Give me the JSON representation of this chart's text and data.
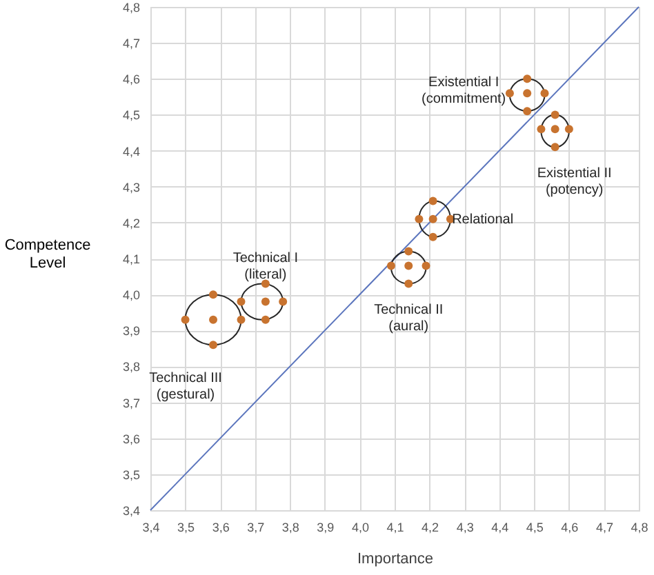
{
  "chart_data": {
    "type": "scatter",
    "xlabel": "Importance",
    "ylabel": "Competence\nLevel",
    "xlim": [
      3.4,
      4.8
    ],
    "ylim": [
      3.4,
      4.8
    ],
    "xticks": [
      {
        "value": 3.4,
        "label": "3,4"
      },
      {
        "value": 3.5,
        "label": "3,5"
      },
      {
        "value": 3.6,
        "label": "3,6"
      },
      {
        "value": 3.7,
        "label": "3,7"
      },
      {
        "value": 3.8,
        "label": "3,8"
      },
      {
        "value": 3.9,
        "label": "3,9"
      },
      {
        "value": 4.0,
        "label": "4,0"
      },
      {
        "value": 4.1,
        "label": "4,1"
      },
      {
        "value": 4.2,
        "label": "4,2"
      },
      {
        "value": 4.3,
        "label": "4,3"
      },
      {
        "value": 4.4,
        "label": "4,4"
      },
      {
        "value": 4.5,
        "label": "4,5"
      },
      {
        "value": 4.6,
        "label": "4,6"
      },
      {
        "value": 4.7,
        "label": "4,7"
      },
      {
        "value": 4.8,
        "label": "4,8"
      }
    ],
    "yticks": [
      {
        "value": 3.4,
        "label": "3,4"
      },
      {
        "value": 3.5,
        "label": "3,5"
      },
      {
        "value": 3.6,
        "label": "3,6"
      },
      {
        "value": 3.7,
        "label": "3,7"
      },
      {
        "value": 3.8,
        "label": "3,8"
      },
      {
        "value": 3.9,
        "label": "3,9"
      },
      {
        "value": 4.0,
        "label": "4,0"
      },
      {
        "value": 4.1,
        "label": "4,1"
      },
      {
        "value": 4.2,
        "label": "4,2"
      },
      {
        "value": 4.3,
        "label": "4,3"
      },
      {
        "value": 4.4,
        "label": "4,4"
      },
      {
        "value": 4.5,
        "label": "4,5"
      },
      {
        "value": 4.6,
        "label": "4,6"
      },
      {
        "value": 4.7,
        "label": "4,7"
      },
      {
        "value": 4.8,
        "label": "4,8"
      }
    ],
    "grid": true,
    "marker": "circle",
    "series": [
      {
        "name": "Existential I\n(commitment)",
        "color": "#c8732f",
        "x": [
          4.48,
          4.43,
          4.53,
          4.48,
          4.48
        ],
        "values": [
          4.56,
          4.56,
          4.56,
          4.51,
          4.6
        ]
      },
      {
        "name": "Existential II\n(potency)",
        "color": "#c8732f",
        "x": [
          4.56,
          4.52,
          4.6,
          4.56,
          4.56
        ],
        "values": [
          4.46,
          4.46,
          4.46,
          4.41,
          4.5
        ]
      },
      {
        "name": "Relational",
        "color": "#c8732f",
        "x": [
          4.21,
          4.17,
          4.26,
          4.21,
          4.21
        ],
        "values": [
          4.21,
          4.21,
          4.21,
          4.16,
          4.26
        ]
      },
      {
        "name": "Technical II\n(aural)",
        "color": "#c8732f",
        "x": [
          4.14,
          4.09,
          4.19,
          4.14,
          4.14
        ],
        "values": [
          4.08,
          4.08,
          4.08,
          4.03,
          4.12
        ]
      },
      {
        "name": "Technical I\n(literal)",
        "color": "#c8732f",
        "x": [
          3.73,
          3.66,
          3.78,
          3.73,
          3.73
        ],
        "values": [
          3.98,
          3.98,
          3.98,
          3.93,
          4.03
        ]
      },
      {
        "name": "Technical III\n(gestural)",
        "color": "#c8732f",
        "x": [
          3.58,
          3.5,
          3.66,
          3.58,
          3.58
        ],
        "values": [
          3.93,
          3.93,
          3.93,
          3.86,
          4.0
        ]
      },
      {
        "type": "line",
        "marker": "none",
        "color": "#5b75bd",
        "x": [
          3.4,
          4.8
        ],
        "values": [
          3.4,
          4.8
        ]
      }
    ]
  }
}
